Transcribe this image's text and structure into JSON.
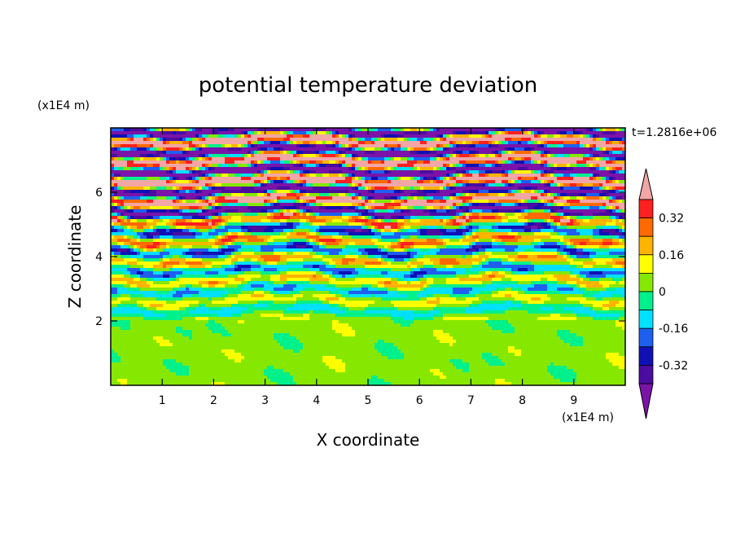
{
  "chart_data": {
    "type": "heatmap",
    "title": "potential temperature deviation",
    "xlabel": "X coordinate",
    "ylabel": "Z coordinate",
    "x_unit": "(x1E4 m)",
    "y_unit": "(x1E4 m)",
    "time_label": "t=1.2816e+06",
    "xlim": [
      0,
      10
    ],
    "ylim": [
      0,
      8
    ],
    "x_ticks": [
      "1",
      "2",
      "3",
      "4",
      "5",
      "6",
      "7",
      "8",
      "9"
    ],
    "y_ticks": [
      "2",
      "4",
      "6"
    ],
    "colorbar": {
      "levels": [
        -0.48,
        -0.4,
        -0.32,
        -0.24,
        -0.16,
        -0.08,
        0,
        0.08,
        0.16,
        0.24,
        0.32,
        0.4,
        0.48
      ],
      "colors": [
        "#7b13a8",
        "#4b0ca0",
        "#1010b4",
        "#1e5ff0",
        "#00e0ff",
        "#00f08c",
        "#86e800",
        "#ffff00",
        "#ffb400",
        "#ff6a00",
        "#ff2020",
        "#f2a6a6"
      ],
      "labels": [
        "0.32",
        "0.16",
        "0",
        "-0.16",
        "-0.32"
      ]
    },
    "legend_position": "right"
  }
}
